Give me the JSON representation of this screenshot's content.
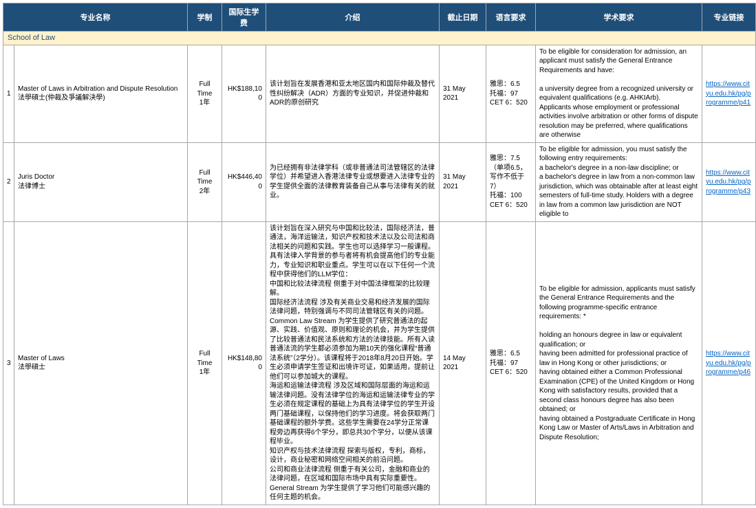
{
  "headers": {
    "name": "专业名称",
    "mode": "学制",
    "fee": "国际生学费",
    "intro": "介绍",
    "deadline": "截止日期",
    "lang": "语言要求",
    "acad": "学术要求",
    "link": "专业链接"
  },
  "section": "School of Law",
  "rows": [
    {
      "idx": "1",
      "name": "Master of Laws in Arbitration and Dispute Resolution\n法學碩士(仲裁及爭議解決學)",
      "mode": "Full Time\n1年",
      "fee": "HK$188,100",
      "intro": "该计划旨在发展香港和亚太地区国内和国际仲裁及替代性纠纷解决（ADR）方面的专业知识，并促进仲裁和ADR的原创研究",
      "deadline": "31 May 2021",
      "lang": "雅思：6.5\n托福：97\nCET 6：520",
      "acad": "To be eligible for consideration for admission, an applicant must satisfy the General Entrance Requirements and have:\n\na university degree from a recognized university or equivalent qualifications (e.g. AHKIArb).\nApplicants whose employment or professional activities involve arbitration or other forms of dispute resolution may be preferred, where qualifications are otherwise",
      "link": "https://www.cityu.edu.hk/pg/programme/p41"
    },
    {
      "idx": "2",
      "name": "Juris Doctor\n法律博士",
      "mode": "Full Time\n2年",
      "fee": "HK$446,400",
      "intro": "为已经拥有非法律学科（或非普通法司法管辖区的法律学位）并希望进入香港法律专业或想要进入法律专业的学生提供全面的法律教育装备自己从事与法律有关的就业。",
      "deadline": "31 May 2021",
      "lang": "雅思：7.5（单项6.5，写作不低于7）\n托福：100\nCET 6：520",
      "acad": "To be eligible for admission, you must satisfy the following entry requirements:\na bachelor's degree in a non-law discipline; or\na bachelor's degree in law from a non-common law jurisdiction, which was obtainable after at least eight semesters of full-time study.  Holders with a degree in law from a common law jurisdiction are NOT eligible to",
      "link": "https://www.cityu.edu.hk/pg/programme/p43"
    },
    {
      "idx": "3",
      "name": "Master of Laws\n法學碩士",
      "mode": "Full Time\n1年",
      "fee": "HK$148,800",
      "intro": "该计划旨在深入研究与中国和比较法，国际经济法，普通法，海洋运输法，知识产权和技术法以及公司法和商法相关的问题和实践。学生也可以选择学习一般课程。具有法律入学背景的参与者将有机会提高他们的专业能力，专业知识和职业重点。学生可以在以下任何一个流程中获得他们的LLM学位：\n中国和比较法律流程 侧重于对中国法律框架的比较理解。\n国际经济法流程 涉及有关商业交易和经济发展的国际法律问题，特别强调与不同司法管辖区有关的问题。\nCommon Law Stream  为学生提供了研究普通法的起源、实践、价值观、原则和理论的机会，并为学生提供了比较普通法和民法系统和方法的法律技能。所有入读普通法流的学生都必须参加为期10天的强化课程“普通法系统”（2学分）。该课程将于2018年8月20日开始。学生必须申请学生签证和出境许可证，如果适用，提前让他们可以参加城大的课程。\n海运和运输法律流程  涉及区域和国际层面的海运和运输法律问题。没有法律学位的海运和运输法律专业的学生必须在规定课程的基础上为具有法律学位的学生开设两门基础课程，以保持他们的学习进度。将会获取两门基础课程的额外学费。这些学生需要在24学分正常课程旁边再获得6个学分，即总共30个学分，以便从该课程毕业。\n知识产权与技术法律流程  探索与版权，专利，商标，设计，商业秘密和网络空间相关的前沿问题。\n公司和商业法律流程  侧重于有关公司，金融和商业的法律问题，在区域和国际市场中具有实际重要性。\nGeneral Stream  为学生提供了学习他们可能感兴趣的任何主题的机会。",
      "deadline": "14 May 2021",
      "lang": "雅思：6.5\n托福：97\nCET 6：520",
      "acad": "To be eligible for admission, applicants must satisfy the General Entrance Requirements and the following programme-specific entrance requirements: *\n\nholding an honours degree in law or equivalent qualification; or\nhaving been admitted for professional practice of law in Hong Kong or other jurisdictions; or\nhaving obtained either a Common Professional Examination (CPE) of the United Kingdom or Hong Kong with satisfactory results, provided that a second class honours degree has also been obtained; or\nhaving obtained a Postgraduate Certificate in Hong Kong Law or Master of Arts/Laws in Arbitration and Dispute Resolution;",
      "link": "https://www.cityu.edu.hk/pg/programme/p46"
    }
  ],
  "colors": {
    "header_bg": "#1f4e79",
    "header_fg": "#ffffff",
    "section_bg": "#fff2cc",
    "section_fg": "#1f4e79",
    "border": "#a6a6a6",
    "link": "#0563c1"
  }
}
